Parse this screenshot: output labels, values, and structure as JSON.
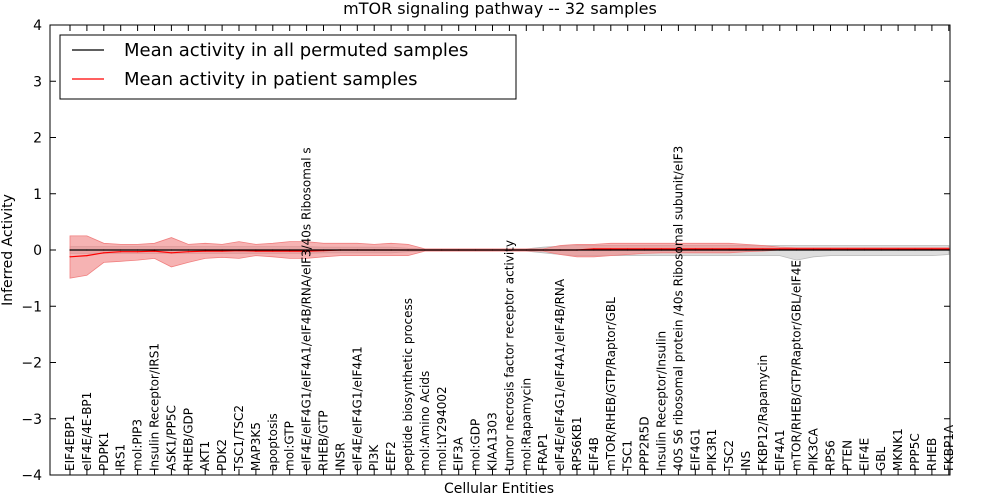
{
  "chart_data": {
    "type": "line",
    "title": "mTOR signaling pathway -- 32 samples",
    "xlabel": "Cellular Entities",
    "ylabel": "Inferred Activity",
    "ylim": [
      -4,
      4
    ],
    "yticks": [
      "−4",
      "−3",
      "−2",
      "−1",
      "0",
      "1",
      "2",
      "3",
      "4"
    ],
    "grid": false,
    "legend_position": "top-left",
    "categories": [
      "EIF4EBP1",
      "eIF4E/4E-BP1",
      "PDPK1",
      "IRS1",
      "mol:PIP3",
      "Insulin Receptor/IRS1",
      "ASK1/PP5C",
      "RHEB/GDP",
      "AKT1",
      "PDK2",
      "TSC1/TSC2",
      "MAP3K5",
      "apoptosis",
      "mol:GTP",
      "eIF4E/eIF4G1/eIF4A1/eIF4B/RNA/eIF3/40s Ribosomal s",
      "RHEB/GTP",
      "INSR",
      "eIF4E/eIF4G1/eIF4A1",
      "PI3K",
      "EEF2",
      "peptide biosynthetic process",
      "mol:Amino Acids",
      "mol:LY294002",
      "EIF3A",
      "mol:GDP",
      "KIAA1303",
      "tumor necrosis factor receptor activity",
      "mol:Rapamycin",
      "FRAP1",
      "eIF4E/eIF4G1/eIF4A1/eIF4B/RNA",
      "RPS6KB1",
      "EIF4B",
      "mTOR/RHEB/GTP/Raptor/GBL",
      "TSC1",
      "PPP2R5D",
      "Insulin Receptor/Insulin",
      "40S S6 ribosomal protein /40s Ribosomal subunit/eIF3",
      "EIF4G1",
      "PIK3R1",
      "TSC2",
      "INS",
      "FKBP12/Rapamycin",
      "EIF4A1",
      "mTOR/RHEB/GTP/Raptor/GBL/eIF4E",
      "PIK3CA",
      "RPS6",
      "PTEN",
      "EIF4E",
      "GBL",
      "MKNK1",
      "PPP5C",
      "RHEB",
      "FKBP1A"
    ],
    "series": [
      {
        "name": "Mean activity in all permuted samples",
        "color": "#000000",
        "band_color": "#bbbbbb",
        "values": [
          0,
          0,
          0,
          0,
          0,
          0,
          0,
          0,
          0,
          0,
          0,
          0,
          0,
          0,
          0,
          0,
          0,
          0,
          0,
          0,
          0,
          0,
          0,
          0,
          0,
          0,
          0,
          0,
          0,
          0,
          0,
          0,
          0,
          0,
          0,
          0,
          0,
          0,
          0,
          0,
          0,
          0,
          0,
          0,
          0,
          0,
          0,
          0,
          0,
          0,
          0,
          0,
          0
        ],
        "upper": [
          0.06,
          0.06,
          0.06,
          0.06,
          0.06,
          0.06,
          0.06,
          0.06,
          0.06,
          0.06,
          0.06,
          0.06,
          0.06,
          0.06,
          0.06,
          0.05,
          0.05,
          0.05,
          0.05,
          0.05,
          0.03,
          0.02,
          0.02,
          0.02,
          0.02,
          0.02,
          0.02,
          0.02,
          0.05,
          0.07,
          0.08,
          0.08,
          0.08,
          0.08,
          0.08,
          0.08,
          0.08,
          0.08,
          0.08,
          0.08,
          0.08,
          0.08,
          0.08,
          0.08,
          0.08,
          0.08,
          0.08,
          0.08,
          0.08,
          0.08,
          0.08,
          0.08,
          0.08
        ],
        "lower": [
          -0.06,
          -0.06,
          -0.06,
          -0.06,
          -0.06,
          -0.06,
          -0.06,
          -0.06,
          -0.06,
          -0.06,
          -0.06,
          -0.06,
          -0.06,
          -0.06,
          -0.06,
          -0.05,
          -0.05,
          -0.05,
          -0.05,
          -0.05,
          -0.03,
          -0.02,
          -0.02,
          -0.02,
          -0.02,
          -0.02,
          -0.02,
          -0.02,
          -0.05,
          -0.08,
          -0.1,
          -0.1,
          -0.1,
          -0.1,
          -0.1,
          -0.1,
          -0.1,
          -0.1,
          -0.1,
          -0.1,
          -0.1,
          -0.1,
          -0.1,
          -0.18,
          -0.12,
          -0.1,
          -0.1,
          -0.1,
          -0.1,
          -0.1,
          -0.1,
          -0.1,
          -0.08
        ]
      },
      {
        "name": "Mean activity in patient samples",
        "color": "#ff0000",
        "band_color": "#f08080",
        "values": [
          -0.12,
          -0.1,
          -0.05,
          -0.03,
          -0.03,
          -0.02,
          -0.05,
          -0.03,
          -0.02,
          -0.02,
          -0.01,
          -0.02,
          -0.02,
          -0.02,
          -0.02,
          -0.01,
          0,
          0,
          0,
          0,
          0,
          0,
          0,
          0,
          0,
          0,
          0,
          0,
          0,
          0,
          0,
          0.02,
          0.02,
          0.02,
          0.02,
          0.02,
          0.02,
          0.02,
          0.02,
          0.02,
          0.02,
          0.02,
          0.02,
          0.02,
          0.02,
          0.02,
          0.02,
          0.02,
          0.02,
          0.02,
          0.02,
          0.02,
          0.02
        ],
        "upper": [
          0.25,
          0.25,
          0.12,
          0.1,
          0.1,
          0.12,
          0.22,
          0.1,
          0.12,
          0.1,
          0.15,
          0.1,
          0.12,
          0.15,
          0.15,
          0.12,
          0.12,
          0.12,
          0.1,
          0.12,
          0.1,
          0.02,
          0.02,
          0.02,
          0.02,
          0.02,
          0.02,
          0.02,
          0.02,
          0.08,
          0.1,
          0.1,
          0.12,
          0.12,
          0.12,
          0.12,
          0.12,
          0.12,
          0.12,
          0.12,
          0.1,
          0.08,
          0.05,
          0.04,
          0.04,
          0.04,
          0.04,
          0.04,
          0.04,
          0.04,
          0.04,
          0.04,
          0.04
        ],
        "lower": [
          -0.5,
          -0.45,
          -0.22,
          -0.2,
          -0.18,
          -0.15,
          -0.3,
          -0.22,
          -0.15,
          -0.13,
          -0.15,
          -0.1,
          -0.12,
          -0.15,
          -0.15,
          -0.12,
          -0.1,
          -0.1,
          -0.1,
          -0.1,
          -0.1,
          -0.02,
          -0.02,
          -0.02,
          -0.02,
          -0.02,
          -0.02,
          -0.02,
          -0.02,
          -0.08,
          -0.12,
          -0.12,
          -0.1,
          -0.08,
          -0.06,
          -0.05,
          -0.05,
          -0.05,
          -0.05,
          -0.05,
          -0.03,
          -0.02,
          0,
          0,
          0,
          0,
          0,
          0,
          0,
          0,
          0,
          0,
          0
        ]
      }
    ]
  }
}
